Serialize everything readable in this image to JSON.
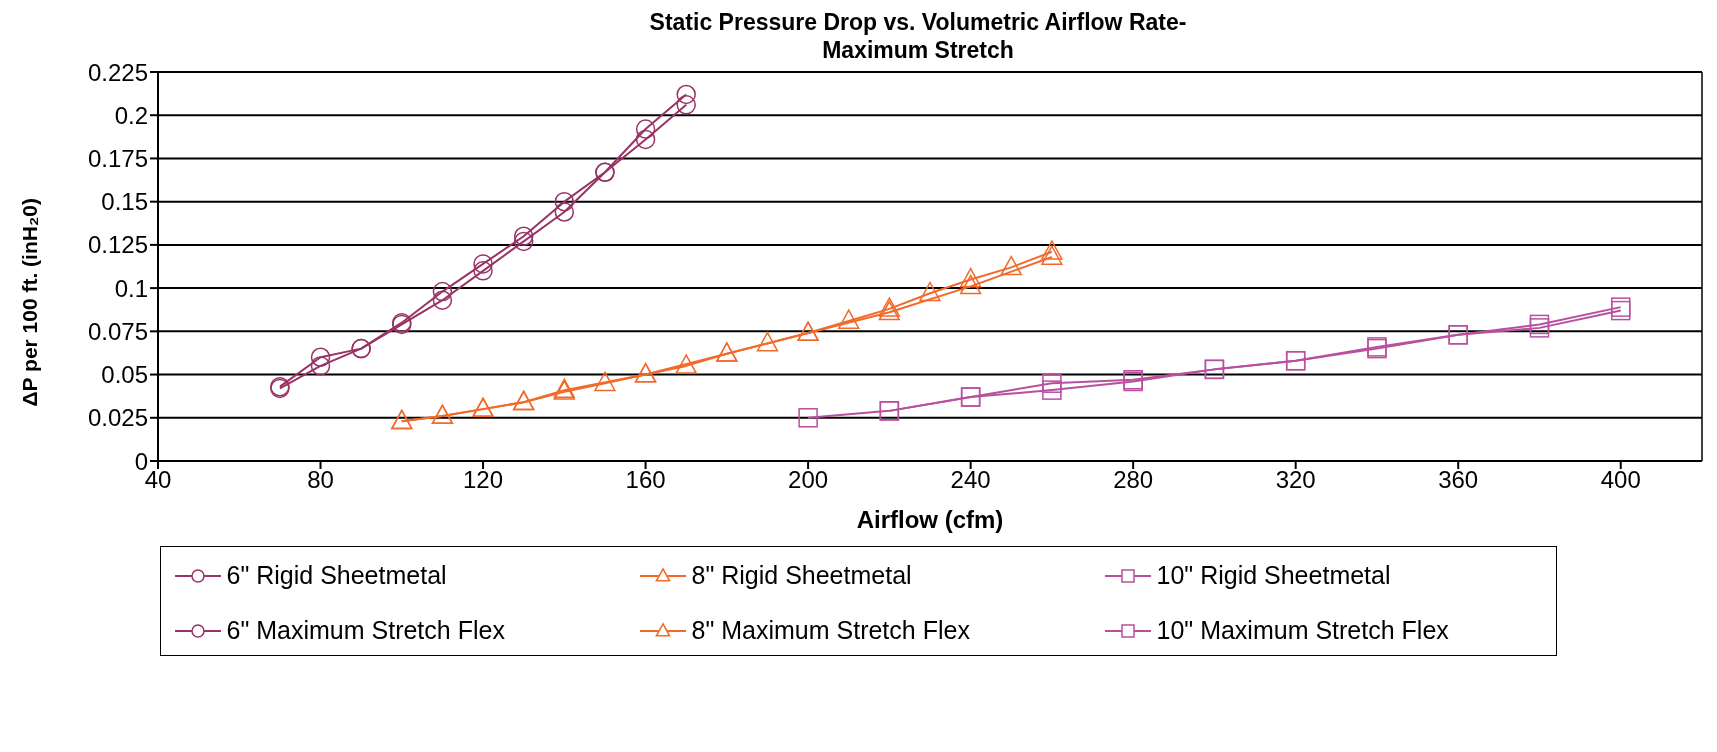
{
  "chart_data": {
    "type": "line",
    "title": "Static Pressure Drop vs. Volumetric Airflow Rate-\nMaximum Stretch",
    "xlabel": "Airflow (cfm)",
    "ylabel": "ΔP per 100 ft. (inH₂0)",
    "xlim": [
      40,
      420
    ],
    "xticks": [
      40,
      80,
      120,
      160,
      200,
      240,
      280,
      320,
      360,
      400
    ],
    "ylim": [
      0,
      0.225
    ],
    "yticks": [
      0,
      0.025,
      0.05,
      0.075,
      0.1,
      0.125,
      0.15,
      0.175,
      0.2,
      0.225
    ],
    "grid": "y",
    "legend": "bottom",
    "line_style": "solid",
    "series": [
      {
        "name": "6\" Rigid Sheetmetal",
        "color": "#993366",
        "marker": "circle",
        "x": [
          70,
          80,
          90,
          100,
          110,
          120,
          130,
          140,
          150,
          160,
          170
        ],
        "values": [
          0.043,
          0.06,
          0.065,
          0.08,
          0.098,
          0.114,
          0.13,
          0.15,
          0.167,
          0.192,
          0.212
        ]
      },
      {
        "name": "8\" Rigid Sheetmetal",
        "color": "#f26a2a",
        "marker": "triangle",
        "x": [
          100,
          110,
          120,
          130,
          140,
          160,
          180,
          200,
          220,
          240,
          260
        ],
        "values": [
          0.023,
          0.026,
          0.03,
          0.034,
          0.041,
          0.05,
          0.062,
          0.074,
          0.086,
          0.101,
          0.118
        ]
      },
      {
        "name": "10\" Rigid Sheetmetal",
        "color": "#b8509f",
        "marker": "square",
        "x": [
          220,
          240,
          260,
          280,
          300,
          320,
          340,
          360,
          380,
          400
        ],
        "values": [
          0.029,
          0.037,
          0.041,
          0.046,
          0.053,
          0.058,
          0.065,
          0.073,
          0.077,
          0.087
        ]
      },
      {
        "name": "6\" Maximum Stretch Flex",
        "color": "#993366",
        "marker": "circle",
        "x": [
          70,
          80,
          90,
          100,
          110,
          120,
          130,
          140,
          150,
          160,
          170
        ],
        "values": [
          0.042,
          0.055,
          0.065,
          0.079,
          0.093,
          0.11,
          0.127,
          0.144,
          0.167,
          0.186,
          0.206
        ]
      },
      {
        "name": "8\" Maximum Stretch Flex",
        "color": "#f26a2a",
        "marker": "triangle",
        "x": [
          100,
          110,
          120,
          130,
          140,
          150,
          160,
          170,
          180,
          190,
          200,
          210,
          220,
          230,
          240,
          250,
          260
        ],
        "values": [
          0.023,
          0.026,
          0.03,
          0.034,
          0.04,
          0.045,
          0.05,
          0.055,
          0.062,
          0.068,
          0.074,
          0.081,
          0.088,
          0.097,
          0.105,
          0.112,
          0.121
        ]
      },
      {
        "name": "10\" Maximum Stretch Flex",
        "color": "#b8509f",
        "marker": "square",
        "x": [
          200,
          220,
          240,
          260,
          280,
          300,
          320,
          340,
          360,
          380,
          400
        ],
        "values": [
          0.025,
          0.029,
          0.037,
          0.045,
          0.047,
          0.053,
          0.058,
          0.066,
          0.073,
          0.079,
          0.089
        ]
      }
    ]
  }
}
